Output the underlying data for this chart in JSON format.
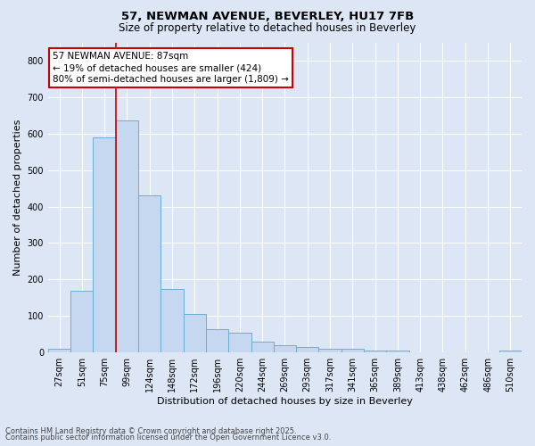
{
  "title_line1": "57, NEWMAN AVENUE, BEVERLEY, HU17 7FB",
  "title_line2": "Size of property relative to detached houses in Beverley",
  "xlabel": "Distribution of detached houses by size in Beverley",
  "ylabel": "Number of detached properties",
  "categories": [
    "27sqm",
    "51sqm",
    "75sqm",
    "99sqm",
    "124sqm",
    "148sqm",
    "172sqm",
    "196sqm",
    "220sqm",
    "244sqm",
    "269sqm",
    "293sqm",
    "317sqm",
    "341sqm",
    "365sqm",
    "389sqm",
    "413sqm",
    "438sqm",
    "462sqm",
    "486sqm",
    "510sqm"
  ],
  "values": [
    10,
    170,
    590,
    635,
    430,
    175,
    105,
    65,
    55,
    30,
    20,
    15,
    10,
    10,
    5,
    5,
    0,
    0,
    0,
    0,
    5
  ],
  "bar_color": "#c5d8f0",
  "bar_edgecolor": "#6baed6",
  "vline_color": "#cc0000",
  "vline_pos": 2.5,
  "annotation_text": "57 NEWMAN AVENUE: 87sqm\n← 19% of detached houses are smaller (424)\n80% of semi-detached houses are larger (1,809) →",
  "annotation_box_edgecolor": "#cc0000",
  "annotation_box_facecolor": "#ffffff",
  "ylim": [
    0,
    850
  ],
  "yticks": [
    0,
    100,
    200,
    300,
    400,
    500,
    600,
    700,
    800
  ],
  "background_color": "#dce6f5",
  "plot_background": "#dce6f5",
  "grid_color": "#ffffff",
  "footer_line1": "Contains HM Land Registry data © Crown copyright and database right 2025.",
  "footer_line2": "Contains public sector information licensed under the Open Government Licence v3.0.",
  "title_fontsize": 9.5,
  "subtitle_fontsize": 8.5,
  "tick_fontsize": 7,
  "ylabel_fontsize": 8,
  "xlabel_fontsize": 8,
  "annotation_fontsize": 7.5,
  "footer_fontsize": 6
}
